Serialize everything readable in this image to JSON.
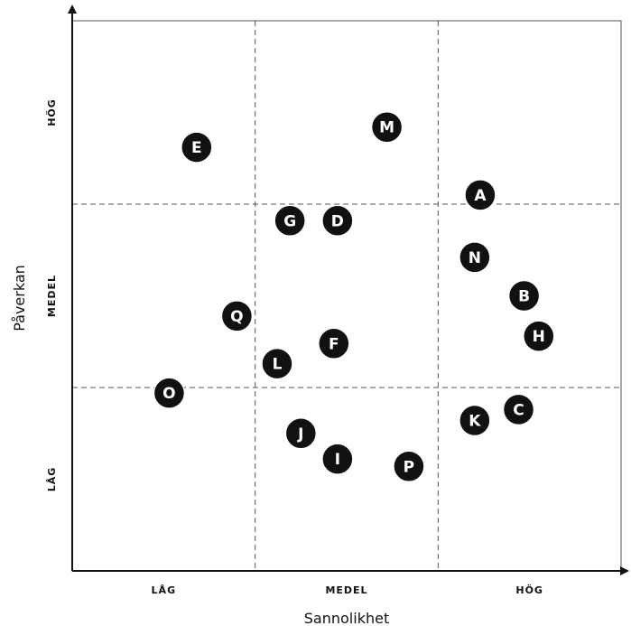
{
  "chart_data": {
    "type": "scatter",
    "title": "",
    "xlabel": "Sannolikhet",
    "ylabel": "Påverkan",
    "xlim": [
      0,
      3
    ],
    "ylim": [
      0,
      3
    ],
    "grid": true,
    "x_tick_labels": [
      "LÅG",
      "MEDEL",
      "HÖG"
    ],
    "y_tick_labels": [
      "LÅG",
      "MEDEL",
      "HÖG"
    ],
    "points": [
      {
        "label": "A",
        "x": 2.23,
        "y": 2.05
      },
      {
        "label": "B",
        "x": 2.47,
        "y": 1.5
      },
      {
        "label": "C",
        "x": 2.44,
        "y": 0.88
      },
      {
        "label": "D",
        "x": 1.45,
        "y": 1.91
      },
      {
        "label": "E",
        "x": 0.68,
        "y": 2.31
      },
      {
        "label": "F",
        "x": 1.43,
        "y": 1.24
      },
      {
        "label": "G",
        "x": 1.19,
        "y": 1.91
      },
      {
        "label": "H",
        "x": 2.55,
        "y": 1.28
      },
      {
        "label": "I",
        "x": 1.45,
        "y": 0.61
      },
      {
        "label": "J",
        "x": 1.25,
        "y": 0.75
      },
      {
        "label": "K",
        "x": 2.2,
        "y": 0.82
      },
      {
        "label": "L",
        "x": 1.12,
        "y": 1.13
      },
      {
        "label": "M",
        "x": 1.72,
        "y": 2.42
      },
      {
        "label": "N",
        "x": 2.2,
        "y": 1.71
      },
      {
        "label": "O",
        "x": 0.53,
        "y": 0.97
      },
      {
        "label": "P",
        "x": 1.84,
        "y": 0.57
      },
      {
        "label": "Q",
        "x": 0.9,
        "y": 1.39
      }
    ],
    "colors": {
      "point_fill": "#111111",
      "point_border": "#ffffff",
      "point_text": "#ffffff",
      "axis": "#111111",
      "grid": "#555555",
      "frame": "#555555"
    }
  }
}
